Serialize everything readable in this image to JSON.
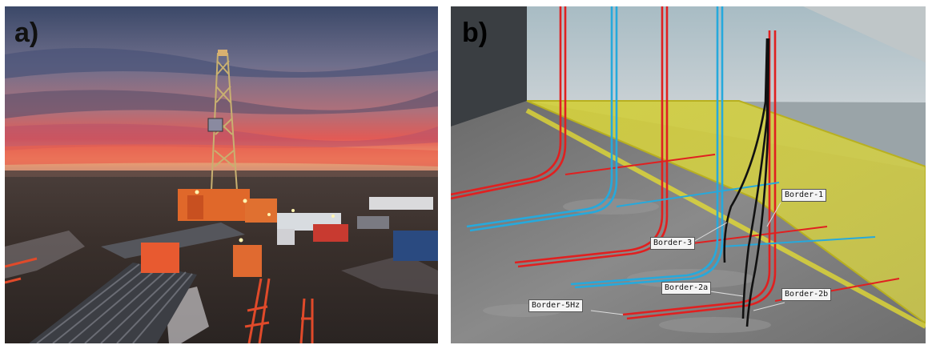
{
  "panel_a": {
    "label": "a)"
  },
  "panel_b": {
    "label": "b)",
    "borders": [
      {
        "name": "Border-1"
      },
      {
        "name": "Border-3"
      },
      {
        "name": "Border-2a"
      },
      {
        "name": "Border-2b"
      },
      {
        "name": "Border-5Hz"
      }
    ]
  },
  "colors": {
    "sky_top": "#3c4a6e",
    "sunset": "#e25a5a",
    "rig": "#e06a2a",
    "well_red": "#e02020",
    "well_blue": "#26a9dc",
    "trajectory": "#111111",
    "plane_yellow": "#d8d83a"
  }
}
